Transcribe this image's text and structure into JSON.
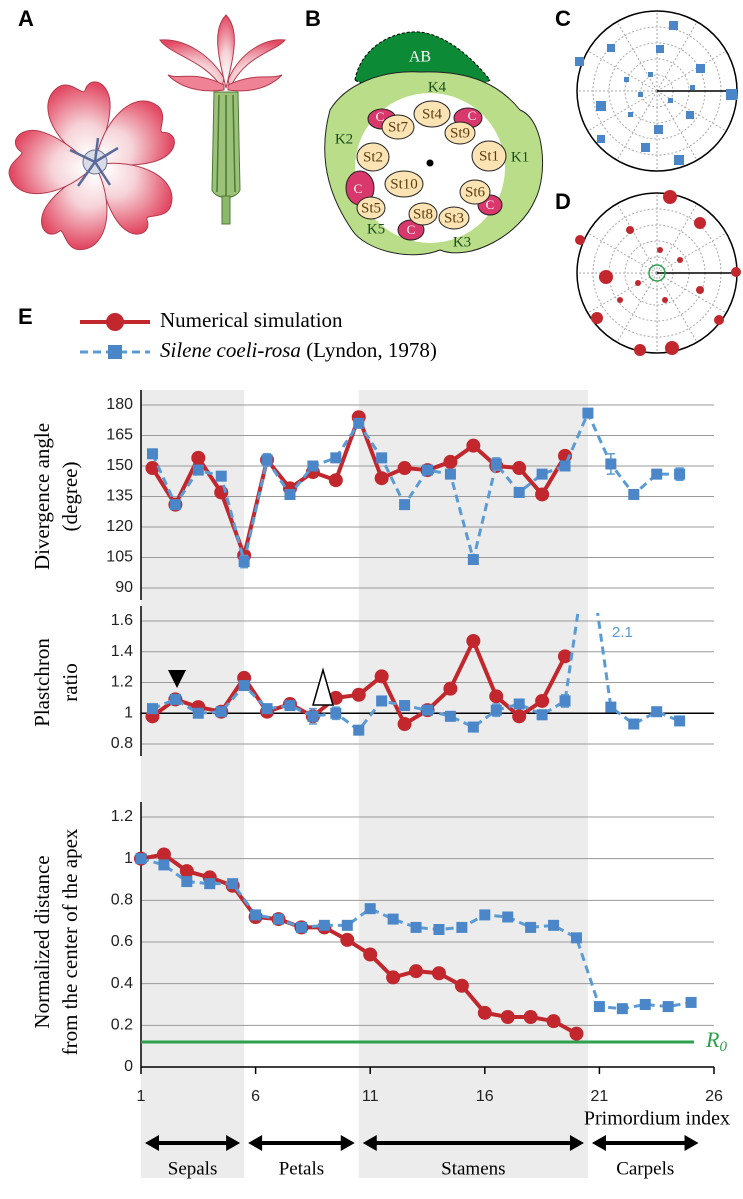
{
  "panel_labels": [
    "A",
    "B",
    "C",
    "D",
    "E"
  ],
  "panel_b": {
    "labels": [
      "AB",
      "K4",
      "K2",
      "K1",
      "K5",
      "K3",
      "St1",
      "St2",
      "St3",
      "St4",
      "St5",
      "St6",
      "St7",
      "St8",
      "St9",
      "St10",
      "C"
    ]
  },
  "chart_data": [
    {
      "type": "line",
      "ylabel": [
        "Divergence angle",
        "(degree)"
      ],
      "xlim": [
        1,
        26
      ],
      "ylim": [
        90,
        180
      ],
      "yticks": [
        90,
        105,
        120,
        135,
        150,
        165,
        180
      ],
      "grid": true,
      "series": [
        {
          "name": "Numerical simulation",
          "color": "#c1272d",
          "marker": "circle",
          "x": [
            1.5,
            2.5,
            3.5,
            4.5,
            5.5,
            6.5,
            7.5,
            8.5,
            9.5,
            10.5,
            11.5,
            12.5,
            13.5,
            14.5,
            15.5,
            16.5,
            17.5,
            18.5,
            19.5
          ],
          "values": [
            149,
            131,
            154,
            137,
            106,
            153,
            139,
            147,
            143,
            174,
            144,
            149,
            148,
            152,
            160,
            150,
            149,
            136,
            155
          ]
        },
        {
          "name": "Silene coeli-rosa",
          "name_suffix": "(Lyndon, 1978)",
          "color": "#5b9bd5",
          "marker": "square",
          "dashed": true,
          "x": [
            1.5,
            2.5,
            3.5,
            4.5,
            5.5,
            6.5,
            7.5,
            8.5,
            9.5,
            10.5,
            11.5,
            12.5,
            13.5,
            14.5,
            15.5,
            16.5,
            17.5,
            18.5,
            19.5,
            20.5,
            21.5,
            22.5,
            23.5,
            24.5
          ],
          "values": [
            156,
            131,
            148,
            145,
            103,
            153,
            136,
            150,
            154,
            171,
            154,
            131,
            148,
            146,
            104,
            151,
            137,
            146,
            150,
            176,
            151,
            136,
            146,
            146
          ],
          "errors": [
            2,
            2,
            2,
            2,
            3,
            3,
            2,
            2,
            2,
            2,
            2,
            2,
            2,
            2,
            2,
            3,
            2,
            2,
            2,
            2,
            5,
            2,
            2,
            3
          ]
        }
      ]
    },
    {
      "type": "line",
      "ylabel": [
        "Plastchron",
        "ratio"
      ],
      "xlim": [
        1,
        26
      ],
      "ylim": [
        0.8,
        1.6
      ],
      "yticks": [
        0.8,
        1,
        1.2,
        1.4,
        1.6
      ],
      "grid": true,
      "hline": 1,
      "series": [
        {
          "name": "Numerical simulation",
          "color": "#c1272d",
          "marker": "circle",
          "x": [
            1.5,
            2.5,
            3.5,
            4.5,
            5.5,
            6.5,
            7.5,
            8.5,
            9.5,
            10.5,
            11.5,
            12.5,
            13.5,
            14.5,
            15.5,
            16.5,
            17.5,
            18.5,
            19.5
          ],
          "values": [
            0.98,
            1.09,
            1.04,
            1.01,
            1.23,
            1.01,
            1.06,
            0.98,
            1.1,
            1.12,
            1.24,
            0.93,
            1.02,
            1.16,
            1.47,
            1.11,
            0.98,
            1.08,
            1.37
          ]
        },
        {
          "name": "Silene coeli-rosa",
          "name_suffix": "(Lyndon, 1978)",
          "color": "#5b9bd5",
          "marker": "square",
          "dashed": true,
          "labeled_point": 19,
          "x": [
            1.5,
            2.5,
            3.5,
            4.5,
            5.5,
            6.5,
            7.5,
            8.5,
            9.5,
            10.5,
            11.5,
            12.5,
            13.5,
            14.5,
            15.5,
            16.5,
            17.5,
            18.5,
            19.5,
            20.5,
            21.5,
            22.5,
            23.5,
            24.5
          ],
          "values": [
            1.03,
            1.09,
            1.0,
            1.01,
            1.18,
            1.03,
            1.05,
            0.98,
            1.0,
            0.89,
            1.08,
            1.05,
            1.02,
            0.98,
            0.91,
            1.02,
            1.06,
            0.99,
            1.08,
            2.1,
            1.04,
            0.93,
            1.01,
            0.95
          ],
          "errors": [
            0.02,
            0.02,
            0.02,
            0.02,
            0.02,
            0.02,
            0.02,
            0.05,
            0.04,
            0.02,
            0.02,
            0.03,
            0.02,
            0.02,
            0.03,
            0.04,
            0.03,
            0.03,
            0.04,
            0.02,
            0.02,
            0.02,
            0.02,
            0.02
          ]
        }
      ]
    },
    {
      "type": "line",
      "ylabel": [
        "Normalized distance",
        "from the center of the apex"
      ],
      "xlabel": "Primordium index",
      "xlim": [
        1,
        26
      ],
      "xticks": [
        1,
        6,
        11,
        16,
        21,
        26
      ],
      "ylim": [
        0,
        1.2
      ],
      "yticks": [
        0,
        0.2,
        0.4,
        0.6,
        0.8,
        1,
        1.2
      ],
      "grid": true,
      "reference_line": {
        "value": 0.12,
        "label": "R",
        "label_sub": "0",
        "color": "#2ca04a"
      },
      "groups": [
        {
          "label": "Sepals",
          "start": 1,
          "end": 5,
          "shaded": true
        },
        {
          "label": "Petals",
          "start": 6,
          "end": 10,
          "shaded": false
        },
        {
          "label": "Stamens",
          "start": 11,
          "end": 20,
          "shaded": true
        },
        {
          "label": "Carpels",
          "start": 21,
          "end": 25,
          "shaded": false
        }
      ],
      "series": [
        {
          "name": "Numerical simulation",
          "color": "#c1272d",
          "marker": "circle",
          "x": [
            1,
            2,
            3,
            4,
            5,
            6,
            7,
            8,
            9,
            10,
            11,
            12,
            13,
            14,
            15,
            16,
            17,
            18,
            19,
            20
          ],
          "values": [
            1.0,
            1.02,
            0.94,
            0.91,
            0.87,
            0.72,
            0.71,
            0.67,
            0.67,
            0.61,
            0.54,
            0.43,
            0.46,
            0.45,
            0.39,
            0.26,
            0.24,
            0.24,
            0.22,
            0.16
          ]
        },
        {
          "name": "Silene coeli-rosa",
          "name_suffix": "(Lyndon, 1978)",
          "color": "#5b9bd5",
          "marker": "square",
          "dashed": true,
          "x": [
            1,
            2,
            3,
            4,
            5,
            6,
            7,
            8,
            9,
            10,
            11,
            12,
            13,
            14,
            15,
            16,
            17,
            18,
            19,
            20,
            21,
            22,
            23,
            24,
            25
          ],
          "values": [
            1.0,
            0.97,
            0.89,
            0.88,
            0.88,
            0.73,
            0.71,
            0.67,
            0.68,
            0.68,
            0.76,
            0.71,
            0.67,
            0.66,
            0.67,
            0.73,
            0.72,
            0.67,
            0.68,
            0.62,
            0.29,
            0.28,
            0.3,
            0.29,
            0.31
          ]
        }
      ]
    }
  ]
}
